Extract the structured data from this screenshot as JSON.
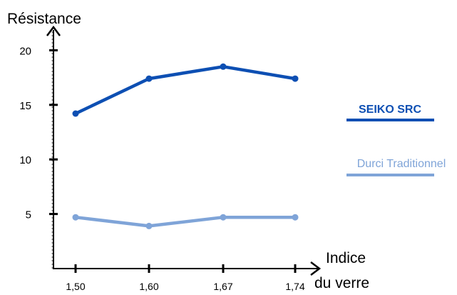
{
  "chart_data": {
    "type": "line",
    "title": "",
    "ylabel": "Résistance",
    "xlabel_line1": "Indice",
    "xlabel_line2": "du verre",
    "categories": [
      "1,50",
      "1,60",
      "1,67",
      "1,74"
    ],
    "yticks": [
      5,
      10,
      15,
      20
    ],
    "ylim": [
      0,
      22.5
    ],
    "grid": false,
    "legend_position": "right",
    "series": [
      {
        "name": "SEIKO SRC",
        "values": [
          14.2,
          17.4,
          18.5,
          17.4
        ],
        "color": "#0d4fb3"
      },
      {
        "name": "Durci Traditionnel",
        "values": [
          4.7,
          3.9,
          4.7,
          4.7
        ],
        "color": "#7fa4d8"
      }
    ]
  }
}
